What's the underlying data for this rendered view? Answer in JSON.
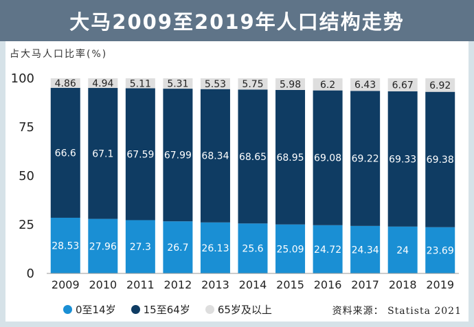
{
  "title": "大马2009至2019年人口结构走势",
  "unit_label": "占大马人口比率(%)",
  "source": "资料来源： Statista 2021",
  "colors": {
    "age_0_14": "#1a8fd4",
    "age_15_64": "#0f3c63",
    "age_65_plus": "#dedede",
    "header": "#5f7488"
  },
  "chart_data": {
    "type": "bar",
    "stacked": true,
    "categories": [
      "2009",
      "2010",
      "2011",
      "2012",
      "2013",
      "2014",
      "2015",
      "2016",
      "2017",
      "2018",
      "2019"
    ],
    "series": [
      {
        "name": "0至14岁",
        "values": [
          28.53,
          27.96,
          27.3,
          26.7,
          26.13,
          25.6,
          25.09,
          24.72,
          24.34,
          24,
          23.69
        ]
      },
      {
        "name": "15至64岁",
        "values": [
          66.6,
          67.1,
          67.59,
          67.99,
          68.34,
          68.65,
          68.95,
          69.08,
          69.22,
          69.33,
          69.38
        ]
      },
      {
        "name": "65岁及以上",
        "values": [
          4.86,
          4.94,
          5.11,
          5.31,
          5.53,
          5.75,
          5.98,
          6.2,
          6.43,
          6.67,
          6.92
        ]
      }
    ],
    "ylim": [
      0,
      100
    ],
    "yticks": [
      0,
      25,
      50,
      75,
      100
    ],
    "grid": false,
    "legend_position": "bottom"
  }
}
